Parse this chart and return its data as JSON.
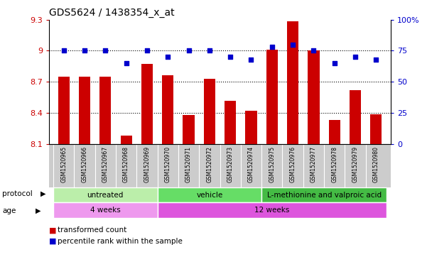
{
  "title": "GDS5624 / 1438354_x_at",
  "samples": [
    "GSM1520965",
    "GSM1520966",
    "GSM1520967",
    "GSM1520968",
    "GSM1520969",
    "GSM1520970",
    "GSM1520971",
    "GSM1520972",
    "GSM1520973",
    "GSM1520974",
    "GSM1520975",
    "GSM1520976",
    "GSM1520977",
    "GSM1520978",
    "GSM1520979",
    "GSM1520980"
  ],
  "transformed_count": [
    8.75,
    8.75,
    8.75,
    8.18,
    8.87,
    8.76,
    8.38,
    8.73,
    8.52,
    8.42,
    9.01,
    9.28,
    9.0,
    8.33,
    8.62,
    8.39
  ],
  "percentile_rank": [
    75,
    75,
    75,
    65,
    75,
    70,
    75,
    75,
    70,
    68,
    78,
    80,
    75,
    65,
    70,
    68
  ],
  "ylim_left": [
    8.1,
    9.3
  ],
  "ylim_right": [
    0,
    100
  ],
  "yticks_left": [
    8.1,
    8.4,
    8.7,
    9.0,
    9.3
  ],
  "yticks_right": [
    0,
    25,
    50,
    75,
    100
  ],
  "ytick_labels_left": [
    "8.1",
    "8.4",
    "8.7",
    "9",
    "9.3"
  ],
  "ytick_labels_right": [
    "0",
    "25",
    "50",
    "75",
    "100%"
  ],
  "bar_color": "#cc0000",
  "dot_color": "#0000cc",
  "protocol_groups": [
    {
      "label": "untreated",
      "start": 0,
      "end": 5,
      "color": "#bbeeaa"
    },
    {
      "label": "vehicle",
      "start": 5,
      "end": 10,
      "color": "#66dd66"
    },
    {
      "label": "L-methionine and valproic acid",
      "start": 10,
      "end": 16,
      "color": "#44bb44"
    }
  ],
  "age_groups": [
    {
      "label": "4 weeks",
      "start": 0,
      "end": 5,
      "color": "#ee99ee"
    },
    {
      "label": "12 weeks",
      "start": 5,
      "end": 16,
      "color": "#dd55dd"
    }
  ],
  "legend_items": [
    {
      "label": "transformed count",
      "color": "#cc0000"
    },
    {
      "label": "percentile rank within the sample",
      "color": "#0000cc"
    }
  ],
  "background_color": "#ffffff",
  "tick_color_left": "#cc0000",
  "tick_color_right": "#0000cc",
  "xtick_bg_color": "#cccccc",
  "grid_dotted_values": [
    8.4,
    8.7,
    9.0
  ],
  "bar_width": 0.55
}
